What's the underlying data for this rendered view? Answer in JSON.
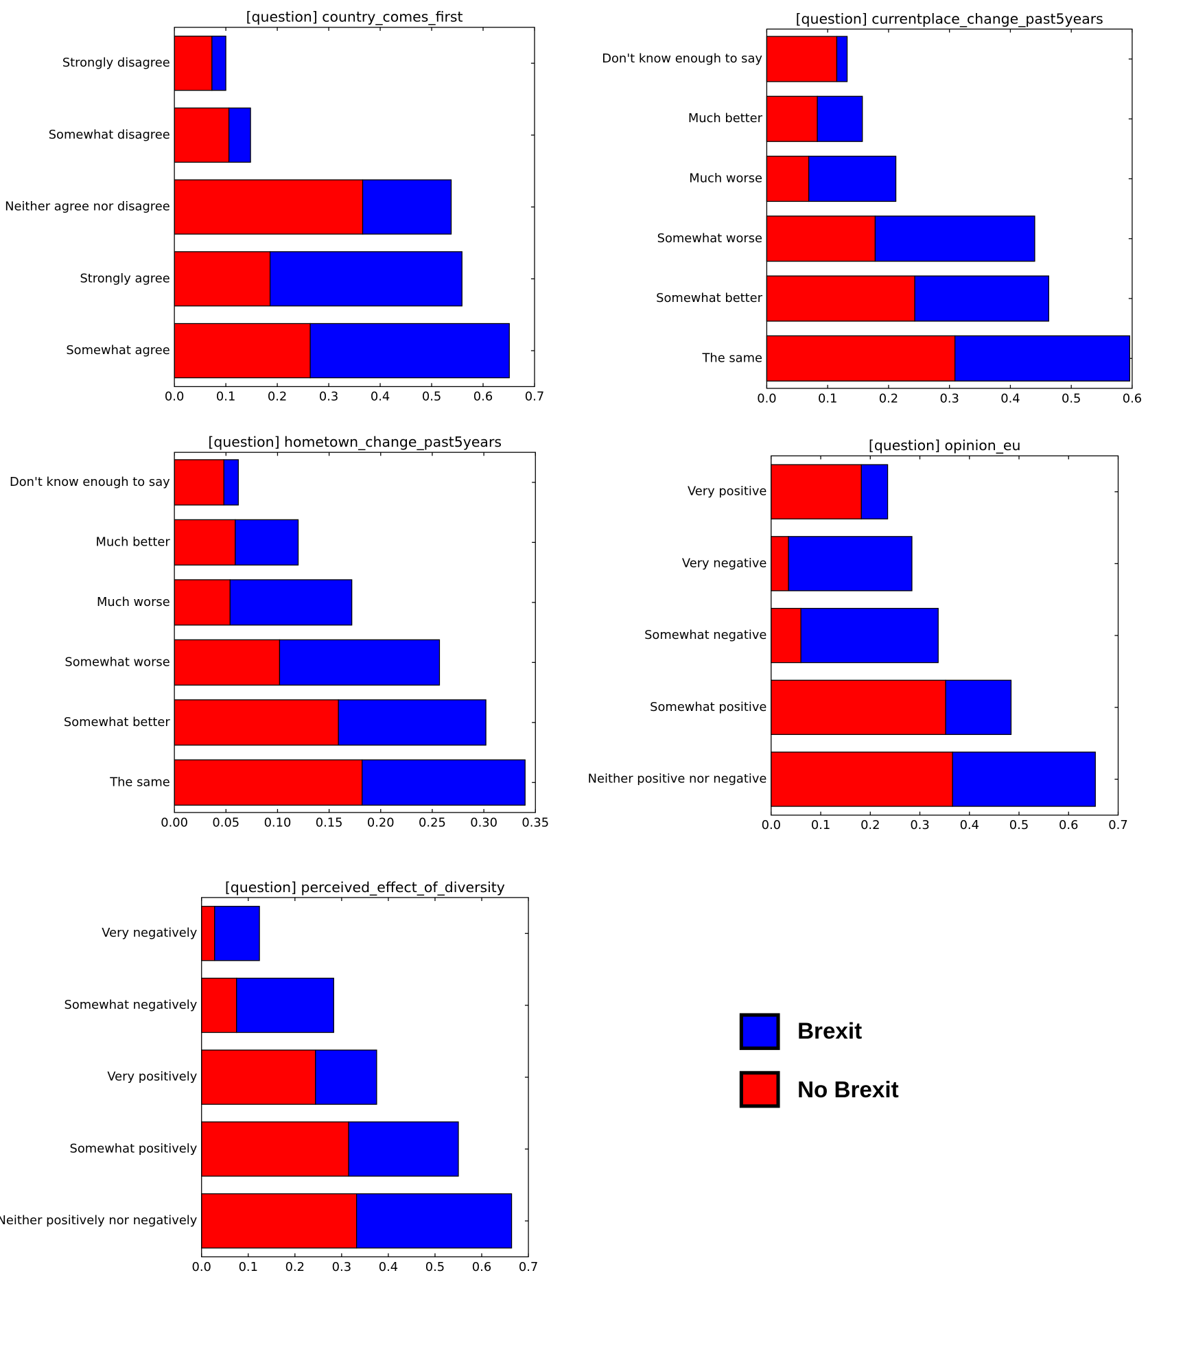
{
  "chart_data": [
    {
      "type": "barh-stacked",
      "title": "[question] country_comes_first",
      "categories": [
        "Strongly disagree",
        "Somewhat disagree",
        "Neither agree nor disagree",
        "Strongly agree",
        "Somewhat agree"
      ],
      "series": [
        {
          "name": "No Brexit",
          "color": "#ff0000",
          "values": [
            0.073,
            0.106,
            0.366,
            0.186,
            0.264
          ]
        },
        {
          "name": "Brexit",
          "color": "#0000ff",
          "values": [
            0.027,
            0.042,
            0.172,
            0.373,
            0.387
          ]
        }
      ],
      "xlim": [
        0,
        0.7
      ],
      "xticks": [
        {
          "value": 0,
          "label": "0.0"
        },
        0.1,
        0.2,
        0.3,
        0.4,
        0.5,
        0.6,
        0.7
      ]
    },
    {
      "type": "barh-stacked",
      "title": "[question] currentplace_change_past5years",
      "categories": [
        "Don't know enough to say",
        "Much better",
        "Much worse",
        "Somewhat worse",
        "Somewhat better",
        "The same"
      ],
      "series": [
        {
          "values": [
            0.115,
            0.083,
            0.069,
            0.178,
            0.243,
            0.309
          ]
        },
        {
          "values": [
            0.017,
            0.074,
            0.143,
            0.262,
            0.22,
            0.287
          ]
        }
      ],
      "xlim": [
        0,
        0.6
      ],
      "xticks": [
        {
          "value": 0,
          "label": "0.0"
        },
        0.1,
        0.2,
        0.3,
        0.4,
        0.5,
        0.6
      ]
    },
    {
      "type": "barh-stacked",
      "title": "[question] hometown_change_past5years",
      "categories": [
        "Don't know enough to say",
        "Much better",
        "Much worse",
        "Somewhat worse",
        "Somewhat better",
        "The same"
      ],
      "series": [
        {
          "values": [
            0.048,
            0.059,
            0.054,
            0.102,
            0.159,
            0.182
          ]
        },
        {
          "values": [
            0.014,
            0.061,
            0.118,
            0.155,
            0.143,
            0.158
          ]
        }
      ],
      "xlim": [
        0,
        0.35
      ],
      "xticks": [
        {
          "value": 0,
          "label": "0.00"
        },
        {
          "value": 0.05,
          "label": "0.05"
        },
        {
          "value": 0.1,
          "label": "0.10"
        },
        0.15,
        {
          "value": 0.2,
          "label": "0.20"
        },
        0.25,
        {
          "value": 0.3,
          "label": "0.30"
        },
        0.35
      ]
    },
    {
      "type": "barh-stacked",
      "title": "[question] opinion_eu",
      "categories": [
        "Very positive",
        "Very negative",
        "Somewhat negative",
        "Somewhat positive",
        "Neither positive nor negative"
      ],
      "series": [
        {
          "values": [
            0.182,
            0.035,
            0.06,
            0.352,
            0.366
          ]
        },
        {
          "values": [
            0.053,
            0.249,
            0.277,
            0.132,
            0.288
          ]
        }
      ],
      "xlim": [
        0,
        0.7
      ],
      "xticks": [
        {
          "value": 0,
          "label": "0.0"
        },
        0.1,
        0.2,
        0.3,
        0.4,
        0.5,
        0.6,
        0.7
      ]
    },
    {
      "type": "barh-stacked",
      "title": "[question] perceived_effect_of_diversity",
      "categories": [
        "Very negatively",
        "Somewhat negatively",
        "Very positively",
        "Somewhat positively",
        "Neither positively nor negatively"
      ],
      "series": [
        {
          "values": [
            0.028,
            0.075,
            0.244,
            0.315,
            0.332
          ]
        },
        {
          "values": [
            0.096,
            0.208,
            0.131,
            0.235,
            0.332
          ]
        }
      ],
      "xlim": [
        0,
        0.7
      ],
      "xticks": [
        {
          "value": 0,
          "label": "0.0"
        },
        0.1,
        0.2,
        0.3,
        0.4,
        0.5,
        0.6,
        0.7
      ]
    }
  ]
}
